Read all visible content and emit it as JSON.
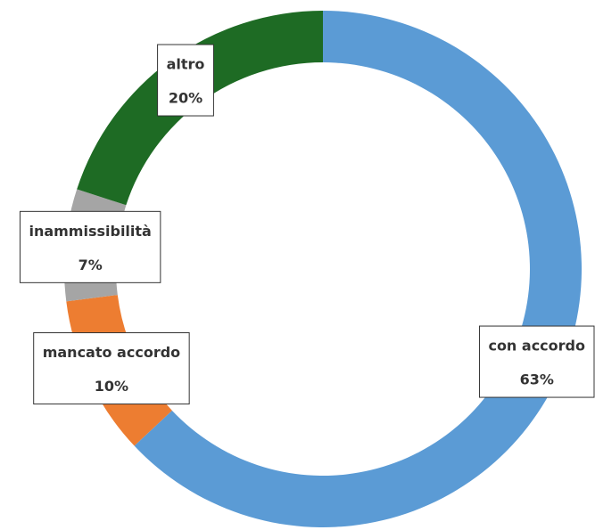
{
  "chart_data": {
    "type": "donut",
    "categories": [
      "con accordo",
      "mancato accordo",
      "inammissibilità",
      "altro"
    ],
    "values": [
      63,
      10,
      7,
      20
    ],
    "value_labels": [
      "63%",
      "10%",
      "7%",
      "20%"
    ],
    "colors": [
      "#5b9bd5",
      "#ed7d31",
      "#a5a5a5",
      "#1e6b24"
    ]
  }
}
